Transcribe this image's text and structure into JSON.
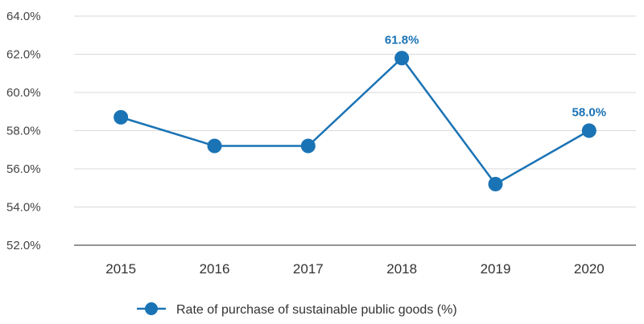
{
  "chart_data": {
    "type": "line",
    "categories": [
      "2015",
      "2016",
      "2017",
      "2018",
      "2019",
      "2020"
    ],
    "series": [
      {
        "name": "Rate of purchase of sustainable public goods (%)",
        "values": [
          58.7,
          57.2,
          57.2,
          61.8,
          55.2,
          58.0
        ],
        "color": "#1a73b5"
      }
    ],
    "data_labels": [
      {
        "index": 3,
        "text": "61.8%"
      },
      {
        "index": 5,
        "text": "58.0%"
      }
    ],
    "yticks": [
      "52.0%",
      "54.0%",
      "56.0%",
      "58.0%",
      "60.0%",
      "62.0%",
      "64.0%"
    ],
    "ylim": [
      52,
      64
    ],
    "grid": "horizontal",
    "legend_position": "bottom-center",
    "colors": {
      "line": "#1a73b5",
      "grid": "#d9d9d9",
      "axis": "#555555"
    }
  }
}
